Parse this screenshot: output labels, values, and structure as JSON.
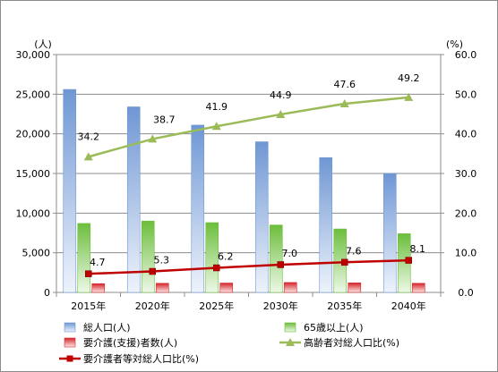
{
  "chart_data": {
    "type": "bar",
    "categories": [
      "2015年",
      "2020年",
      "2025年",
      "2030年",
      "2035年",
      "2040年"
    ],
    "series": [
      {
        "name": "総人口(人)",
        "kind": "bar",
        "axis": "left",
        "color": "#6f97d4",
        "values": [
          25600,
          23400,
          21100,
          19000,
          17000,
          15000
        ]
      },
      {
        "name": "65歳以上(人)",
        "kind": "bar",
        "axis": "left",
        "color": "#6cbe3c",
        "values": [
          8700,
          9000,
          8800,
          8500,
          8000,
          7400
        ]
      },
      {
        "name": "要介護(支援)者数(人)",
        "kind": "bar",
        "axis": "left",
        "color": "#d4262c",
        "values": [
          1100,
          1150,
          1180,
          1250,
          1200,
          1150
        ]
      },
      {
        "name": "高齢者対総人口比(%)",
        "kind": "line",
        "axis": "right",
        "color": "#9bbb59",
        "marker": "triangle",
        "values": [
          34.2,
          38.7,
          41.9,
          44.9,
          47.6,
          49.2
        ],
        "labels": [
          "34.2",
          "38.7",
          "41.9",
          "44.9",
          "47.6",
          "49.2"
        ]
      },
      {
        "name": "要介護者等対総人口比(%)",
        "kind": "line",
        "axis": "right",
        "color": "#c00000",
        "marker": "square",
        "values": [
          4.7,
          5.3,
          6.2,
          7.0,
          7.6,
          8.1
        ],
        "labels": [
          "4.7",
          "5.3",
          "6.2",
          "7.0",
          "7.6",
          "8.1"
        ]
      }
    ],
    "y_left": {
      "unit": "(人)",
      "min": 0,
      "max": 30000,
      "step": 5000,
      "ticks": [
        "0",
        "5,000",
        "10,000",
        "15,000",
        "20,000",
        "25,000",
        "30,000"
      ]
    },
    "y_right": {
      "unit": "(%)",
      "min": 0,
      "max": 60,
      "step": 10,
      "ticks": [
        "0.0",
        "10.0",
        "20.0",
        "30.0",
        "40.0",
        "50.0",
        "60.0"
      ]
    },
    "grid": true,
    "legend_position": "bottom"
  }
}
